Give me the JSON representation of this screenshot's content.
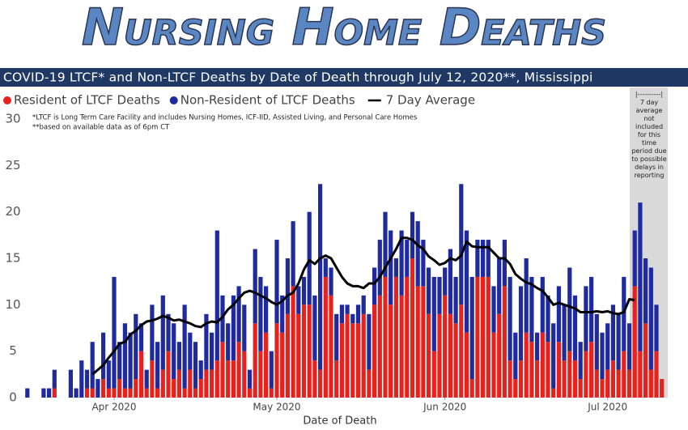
{
  "chart_data": {
    "type": "bar",
    "title": "Nursing Home Deaths",
    "subtitle": "COVID-19 LTCF* and Non-LTCF Deaths by Date of Death through July 12, 2020**, Mississippi",
    "notes": [
      "*LTCF is Long Term Care Facility and includes Nursing Homes, ICF-IID, Assisted Living, and Personal Care Homes",
      "**based on available data as of 6pm CT"
    ],
    "side_note_rule": "|----------|",
    "side_note": "7 day average not included for this time period due to possible delays in reporting",
    "xlabel": "Date of Death",
    "stacked": true,
    "grid": false,
    "categories": [
      null,
      null,
      null,
      null,
      null,
      null,
      null,
      null,
      null,
      null,
      null,
      null,
      null,
      null,
      null,
      null,
      null,
      null,
      null,
      null,
      null,
      null,
      null,
      null,
      null,
      null,
      null,
      null,
      null,
      null,
      null,
      null,
      null,
      null,
      null,
      null,
      null,
      null,
      null,
      null,
      null,
      null,
      null,
      null,
      null,
      null,
      null,
      null,
      null,
      null,
      null,
      null,
      null,
      null,
      null,
      null,
      null,
      null,
      null,
      null,
      null,
      null,
      null,
      null,
      null,
      null,
      null,
      null,
      null,
      null,
      null,
      null,
      null,
      null,
      null,
      null,
      null,
      null,
      null,
      null,
      null,
      null,
      null,
      null,
      null,
      null,
      null,
      null,
      null,
      null,
      null,
      null,
      null,
      null,
      null,
      null,
      null,
      null,
      null,
      null,
      null,
      null,
      null,
      null,
      null,
      null,
      null,
      null,
      null,
      null,
      null,
      null,
      null,
      null,
      null,
      null,
      null,
      null
    ],
    "xticks": [
      {
        "value": 16,
        "label": "Apr 2020"
      },
      {
        "value": 46,
        "label": "May 2020"
      },
      {
        "value": 77,
        "label": "Jun 2020"
      },
      {
        "value": 107,
        "label": "Jul 2020"
      }
    ],
    "ylim": [
      0,
      30
    ],
    "yticks": [
      0,
      5,
      10,
      15,
      20,
      25,
      30
    ],
    "series": [
      {
        "name": "Resident of LTCF Deaths",
        "color": "#e8211c",
        "values": [
          0,
          0,
          0,
          0,
          0,
          1,
          0,
          0,
          0,
          0,
          0,
          1,
          1,
          0,
          2,
          1,
          1,
          2,
          1,
          1,
          2,
          5,
          1,
          4,
          1,
          3,
          5,
          2,
          3,
          1,
          3,
          1,
          2,
          3,
          3,
          4,
          6,
          4,
          4,
          6,
          5,
          1,
          8,
          5,
          7,
          1,
          8,
          7,
          9,
          12,
          9,
          10,
          10,
          4,
          3,
          13,
          11,
          4,
          8,
          9,
          8,
          8,
          9,
          3,
          10,
          11,
          13,
          10,
          13,
          11,
          13,
          15,
          12,
          12,
          9,
          5,
          9,
          11,
          9,
          8,
          10,
          7,
          2,
          13,
          13,
          13,
          7,
          9,
          12,
          4,
          2,
          4,
          7,
          6,
          4,
          7,
          6,
          1,
          6,
          4,
          5,
          4,
          2,
          5,
          6,
          3,
          2,
          3,
          4,
          3,
          5,
          3,
          12,
          5,
          8,
          3,
          5,
          2
        ]
      },
      {
        "name": "Non-Resident of LTCF Deaths",
        "color": "#1f2a9e",
        "values": [
          1,
          0,
          0,
          1,
          1,
          2,
          0,
          0,
          3,
          1,
          4,
          2,
          5,
          2,
          5,
          3,
          12,
          4,
          7,
          6,
          7,
          3,
          2,
          6,
          5,
          8,
          4,
          6,
          3,
          9,
          4,
          5,
          2,
          6,
          4,
          14,
          5,
          4,
          7,
          6,
          5,
          2,
          8,
          8,
          5,
          4,
          9,
          4,
          6,
          7,
          3,
          3,
          10,
          7,
          20,
          2,
          3,
          5,
          2,
          1,
          1,
          2,
          2,
          6,
          4,
          6,
          7,
          8,
          2,
          7,
          4,
          5,
          7,
          5,
          5,
          8,
          4,
          3,
          7,
          5,
          13,
          11,
          11,
          4,
          4,
          4,
          5,
          6,
          5,
          9,
          5,
          8,
          8,
          7,
          3,
          6,
          5,
          7,
          6,
          6,
          9,
          7,
          4,
          7,
          7,
          6,
          5,
          5,
          6,
          6,
          8,
          5,
          6,
          16,
          7,
          11,
          5,
          0
        ]
      },
      {
        "name": "7 Day Average",
        "type": "line",
        "color": "#000000",
        "values": [
          null,
          null,
          null,
          null,
          null,
          null,
          null,
          null,
          null,
          null,
          null,
          null,
          2.5,
          3,
          3.5,
          4.3,
          5,
          5.8,
          6,
          6.8,
          7.2,
          7.8,
          8.2,
          8.3,
          8.5,
          8.8,
          8.6,
          8.3,
          8.4,
          8.2,
          8,
          7.7,
          7.6,
          8,
          8.2,
          8.1,
          8.7,
          9.5,
          10,
          10.7,
          11.3,
          11.5,
          11.3,
          11,
          10.7,
          10.3,
          10,
          10.4,
          11,
          11.3,
          12.3,
          13.8,
          14.8,
          14.4,
          15,
          15.3,
          15,
          14,
          13,
          12.3,
          12,
          12,
          11.8,
          12.3,
          12.3,
          13,
          14,
          15,
          16,
          17.2,
          17.2,
          17,
          16.4,
          16,
          15.2,
          14.8,
          14.3,
          14.5,
          15,
          14.8,
          15.3,
          16.8,
          16.3,
          16.2,
          16.2,
          16.2,
          15.6,
          15,
          15,
          14.4,
          13.3,
          12.8,
          12.4,
          12.2,
          11.8,
          11.5,
          10.8,
          10,
          10.2,
          10,
          9.8,
          9.6,
          9.2,
          9.2,
          9.2,
          9.3,
          9.2,
          9.3,
          9.1,
          9,
          9.2,
          10.6,
          10.5,
          null,
          null,
          null,
          null,
          null
        ]
      }
    ]
  }
}
